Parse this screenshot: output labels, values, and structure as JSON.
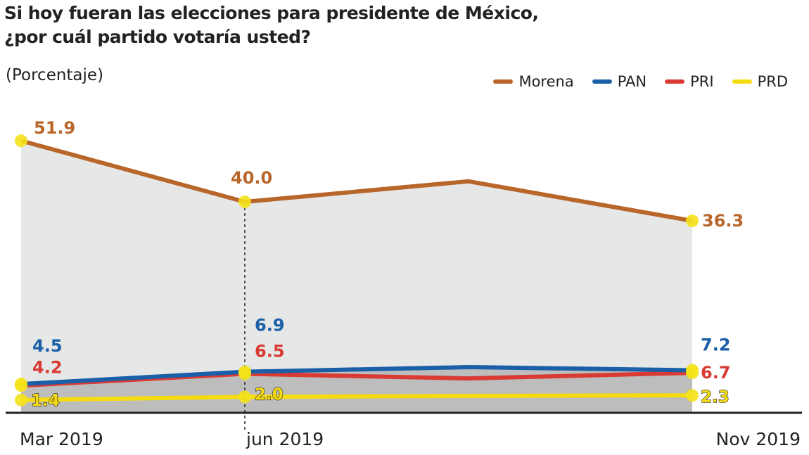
{
  "title_line1": "Si hoy fueran las elecciones para presidente de México,",
  "title_line2": "¿por cuál partido votaría usted?",
  "subtitle": "(Porcentaje)",
  "chart_data": {
    "type": "line",
    "title": "Si hoy fueran las elecciones para presidente de México, ¿por cuál partido votaría usted?",
    "ylabel": "(Porcentaje)",
    "categories": [
      "Mar 2019",
      "jun 2019",
      "",
      "Nov 2019"
    ],
    "ylim": [
      0,
      52
    ],
    "grid": false,
    "legend": "top-right",
    "series": [
      {
        "name": "Morena",
        "color": "#b8662a",
        "values": [
          51.9,
          40.0,
          44.0,
          36.3
        ],
        "labels": [
          "51.9",
          "40.0",
          "",
          "36.3"
        ]
      },
      {
        "name": "PAN",
        "color": "#1a5fa8",
        "values": [
          4.5,
          6.9,
          7.8,
          7.2
        ],
        "labels": [
          "4.5",
          "6.9",
          "",
          "7.2"
        ]
      },
      {
        "name": "PRI",
        "color": "#d93a33",
        "values": [
          4.2,
          6.5,
          5.6,
          6.7
        ],
        "labels": [
          "4.2",
          "6.5",
          "",
          "6.7"
        ]
      },
      {
        "name": "PRD",
        "color": "#f5dc12",
        "values": [
          1.4,
          2.0,
          2.2,
          2.3
        ],
        "labels": [
          "1.4",
          "2.0",
          "",
          "2.3"
        ]
      }
    ]
  }
}
